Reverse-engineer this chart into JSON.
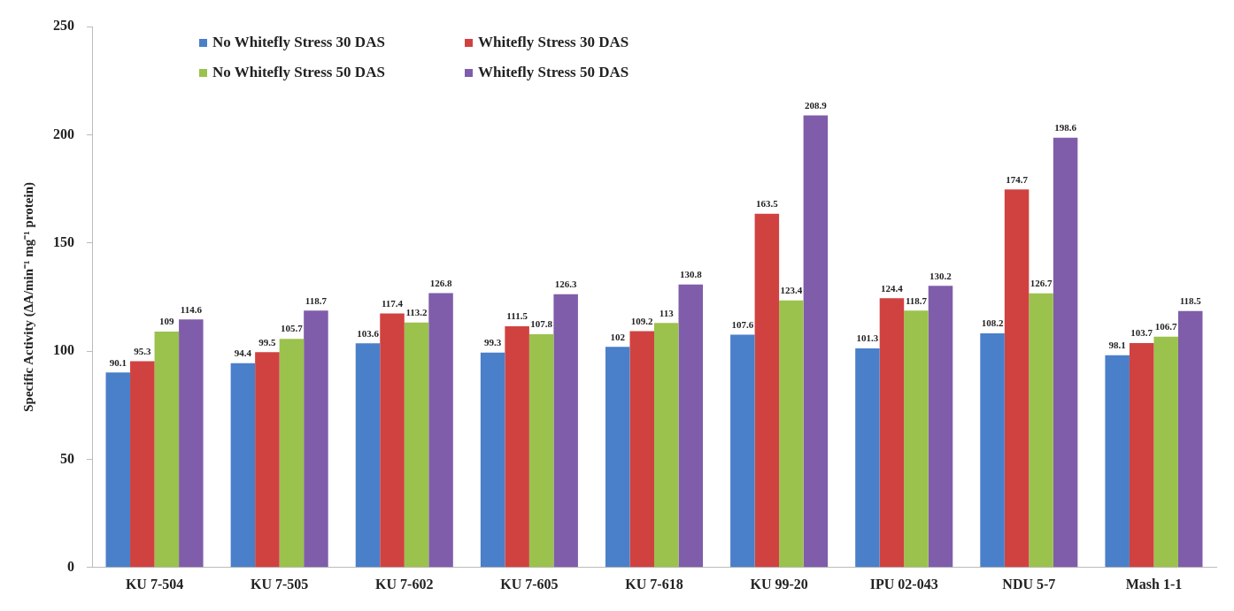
{
  "chart_data": {
    "type": "bar",
    "ylabel": "Specific Activity (ΔA/min⁻¹ mg⁻¹ protein)",
    "categories": [
      "KU 7-504",
      "KU 7-505",
      "KU 7-602",
      "KU 7-605",
      "KU 7-618",
      "KU 99-20",
      "IPU 02-043",
      "NDU 5-7",
      "Mash 1-1"
    ],
    "series": [
      {
        "name": "No Whitefly Stress 30 DAS",
        "color": "#4a7fc9",
        "values": [
          90.1,
          94.4,
          103.6,
          99.3,
          102,
          107.6,
          101.3,
          108.2,
          98.1
        ]
      },
      {
        "name": "Whitefly Stress 30 DAS",
        "color": "#d04240",
        "values": [
          95.3,
          99.5,
          117.4,
          111.5,
          109.2,
          163.5,
          124.4,
          174.7,
          103.7
        ]
      },
      {
        "name": "No Whitefly Stress 50 DAS",
        "color": "#9bc24d",
        "values": [
          109,
          105.7,
          113.2,
          107.8,
          113,
          123.4,
          118.7,
          126.7,
          106.7
        ]
      },
      {
        "name": "Whitefly Stress 50 DAS",
        "color": "#7f5daa",
        "values": [
          114.6,
          118.7,
          126.8,
          126.3,
          130.8,
          208.9,
          130.2,
          198.6,
          118.5
        ]
      }
    ],
    "ylim": [
      0,
      250
    ],
    "yticks": [
      0,
      50,
      100,
      150,
      200,
      250
    ],
    "grid": false,
    "legend": "top left",
    "data_labels": true
  }
}
